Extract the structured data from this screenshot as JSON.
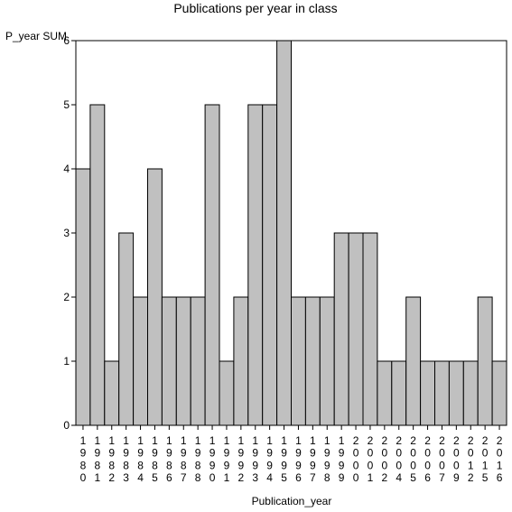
{
  "chart_data": {
    "type": "bar",
    "title": "Publications per year in class",
    "ylabel": "P_year SUM",
    "xlabel": "Publication_year",
    "categories": [
      "1980",
      "1981",
      "1982",
      "1983",
      "1984",
      "1985",
      "1986",
      "1987",
      "1988",
      "1990",
      "1991",
      "1992",
      "1993",
      "1994",
      "1995",
      "1996",
      "1997",
      "1998",
      "1999",
      "2000",
      "2001",
      "2002",
      "2004",
      "2005",
      "2006",
      "2007",
      "2009",
      "2012",
      "2015",
      "2016"
    ],
    "values": [
      4,
      5,
      1,
      3,
      2,
      4,
      2,
      2,
      2,
      5,
      1,
      2,
      5,
      5,
      6,
      2,
      2,
      2,
      3,
      3,
      3,
      1,
      1,
      2,
      1,
      1,
      1,
      1,
      2,
      1
    ],
    "ylim": [
      0,
      6
    ],
    "yticks": [
      0,
      1,
      2,
      3,
      4,
      5,
      6
    ],
    "grid": false,
    "legend": "none",
    "bar_color": "#c0c0c0",
    "bar_stroke": "#000000"
  }
}
